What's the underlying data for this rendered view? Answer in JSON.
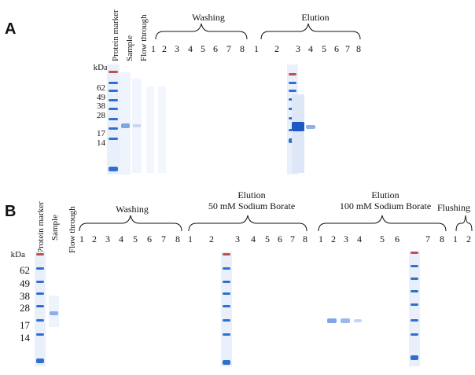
{
  "panel_a": {
    "letter": "A",
    "lane_headers": [
      "Protein marker",
      "Sample",
      "Flow through"
    ],
    "washing": {
      "label": "Washing",
      "lanes": [
        "1",
        "2",
        "3",
        "4",
        "5",
        "6",
        "7",
        "8"
      ]
    },
    "elution": {
      "label": "Elution",
      "lanes": [
        "1",
        "2",
        "3",
        "4",
        "5",
        "6",
        "7",
        "8"
      ]
    },
    "kda_label": "kDa",
    "markers": [
      "62",
      "49",
      "38",
      "28",
      "17",
      "14"
    ]
  },
  "panel_b": {
    "letter": "B",
    "lane_headers": [
      "Protein marker",
      "Sample",
      "Flow through"
    ],
    "washing": {
      "label": "Washing",
      "lanes": [
        "1",
        "2",
        "3",
        "4",
        "5",
        "6",
        "7",
        "8"
      ]
    },
    "elution1": {
      "label1": "Elution",
      "label2": "50 mM Sodium Borate",
      "lanes": [
        "1",
        "2",
        "3",
        "4",
        "5",
        "6",
        "7",
        "8"
      ]
    },
    "elution2": {
      "label1": "Elution",
      "label2": "100 mM Sodium Borate",
      "lanes": [
        "1",
        "2",
        "3",
        "4",
        "5",
        "6",
        "7",
        "8"
      ]
    },
    "flushing": {
      "label": "Flushing",
      "lanes": [
        "1",
        "2"
      ]
    },
    "kda_label": "kDa",
    "markers": [
      "62",
      "49",
      "38",
      "28",
      "17",
      "14"
    ]
  },
  "colors": {
    "gel_blue": "#2f6fd0",
    "gel_light": "#e6eefb",
    "marker_red": "#c0504d"
  }
}
